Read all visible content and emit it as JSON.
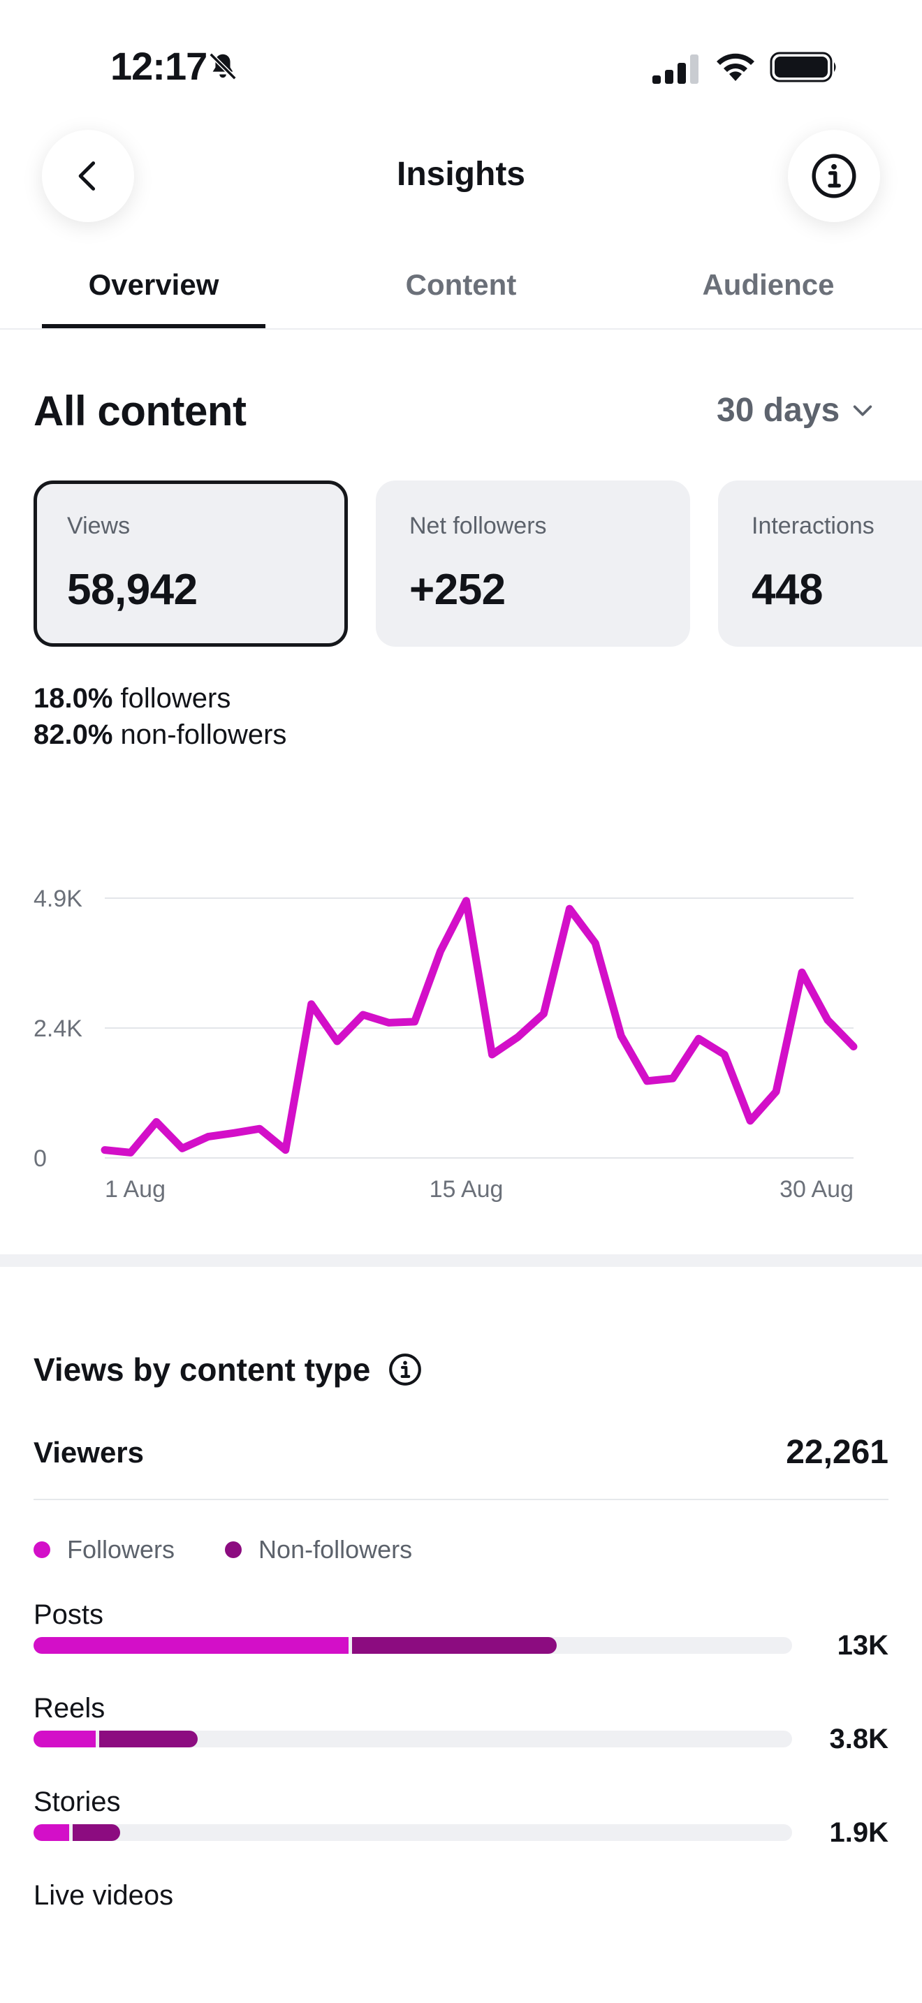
{
  "status_bar": {
    "time": "12:17",
    "icons": [
      "bell-slash-icon",
      "cellular-signal-icon",
      "wifi-icon",
      "battery-icon"
    ]
  },
  "header": {
    "title": "Insights",
    "back_icon": "chevron-left-icon",
    "info_icon": "info-circle-icon"
  },
  "tabs": [
    {
      "label": "Overview",
      "active": true
    },
    {
      "label": "Content",
      "active": false
    },
    {
      "label": "Audience",
      "active": false
    }
  ],
  "section": {
    "title": "All content",
    "range": "30 days",
    "range_icon": "chevron-down-icon"
  },
  "cards": [
    {
      "label": "Views",
      "value": "58,942",
      "selected": true
    },
    {
      "label": "Net followers",
      "value": "+252",
      "selected": false
    },
    {
      "label": "Interactions",
      "value": "448",
      "selected": false
    }
  ],
  "breakdown": [
    {
      "percent": "18.0%",
      "label": " followers"
    },
    {
      "percent": "82.0%",
      "label": " non-followers"
    }
  ],
  "chart_data": {
    "type": "line",
    "x_tick_labels": [
      "1 Aug",
      "15 Aug",
      "30 Aug"
    ],
    "y_tick_labels": [
      "0",
      "2.4K",
      "4.9K"
    ],
    "ylim": [
      0,
      4900
    ],
    "grid": true,
    "color": "#d30fc8",
    "series": [
      {
        "x": [
          "1 Aug",
          "2 Aug",
          "3 Aug",
          "4 Aug",
          "5 Aug",
          "6 Aug",
          "7 Aug",
          "8 Aug",
          "9 Aug",
          "10 Aug",
          "11 Aug",
          "12 Aug",
          "13 Aug",
          "14 Aug",
          "15 Aug",
          "16 Aug",
          "17 Aug",
          "18 Aug",
          "19 Aug",
          "20 Aug",
          "21 Aug",
          "22 Aug",
          "23 Aug",
          "24 Aug",
          "25 Aug",
          "26 Aug",
          "27 Aug",
          "28 Aug",
          "29 Aug",
          "30 Aug"
        ],
        "values": [
          150,
          100,
          680,
          180,
          400,
          470,
          550,
          150,
          2900,
          2200,
          2700,
          2550,
          2570,
          3900,
          4850,
          1950,
          2280,
          2720,
          4700,
          4050,
          2300,
          1450,
          1500,
          2250,
          1950,
          700,
          1250,
          3500,
          2600,
          2100
        ]
      }
    ]
  },
  "content_type": {
    "title": "Views by content type",
    "info_icon": "info-circle-icon",
    "viewers_label": "Viewers",
    "viewers_value": "22,261",
    "legend": [
      {
        "label": "Followers",
        "color": "#d30fc8"
      },
      {
        "label": "Non-followers",
        "color": "#8c0c80"
      }
    ],
    "rows": [
      {
        "label": "Posts",
        "value": "13K",
        "followers_fraction": 0.415,
        "non_followers_fraction": 0.27
      },
      {
        "label": "Reels",
        "value": "3.8K",
        "followers_fraction": 0.082,
        "non_followers_fraction": 0.13
      },
      {
        "label": "Stories",
        "value": "1.9K",
        "followers_fraction": 0.047,
        "non_followers_fraction": 0.063
      },
      {
        "label": "Live videos",
        "value": "",
        "followers_fraction": 0,
        "non_followers_fraction": 0
      }
    ]
  }
}
